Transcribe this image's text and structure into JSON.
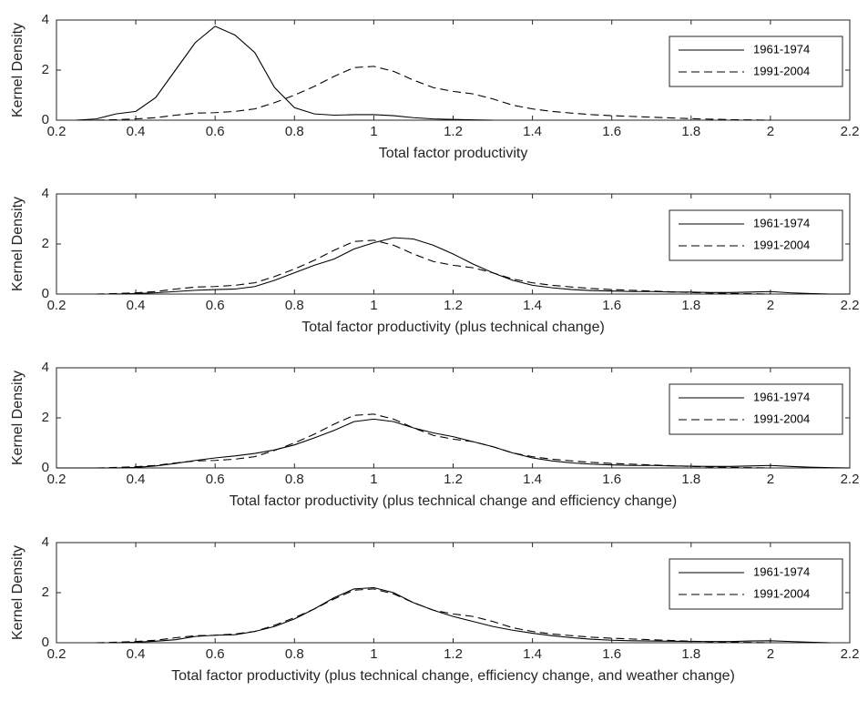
{
  "chart_data": [
    {
      "type": "line",
      "xlabel": "Total factor productivity",
      "ylabel": "Kernel Density",
      "xlim": [
        0.2,
        2.2
      ],
      "ylim": [
        0,
        4
      ],
      "xticks": [
        0.2,
        0.4,
        0.6,
        0.8,
        1,
        1.2,
        1.4,
        1.6,
        1.8,
        2,
        2.2
      ],
      "yticks": [
        0,
        2,
        4
      ],
      "grid": false,
      "legend": "northeast",
      "x": [
        0.2,
        0.25,
        0.3,
        0.35,
        0.4,
        0.45,
        0.5,
        0.55,
        0.6,
        0.65,
        0.7,
        0.75,
        0.8,
        0.85,
        0.9,
        0.95,
        1,
        1.05,
        1.1,
        1.15,
        1.2,
        1.25,
        1.3,
        1.35,
        1.4,
        1.45,
        1.5,
        1.55,
        1.6,
        1.65,
        1.7,
        1.75,
        1.8,
        1.85,
        1.9,
        1.95,
        2,
        2.05,
        2.1,
        2.15,
        2.2
      ],
      "series": [
        {
          "name": "1961-1974",
          "color": "#000000",
          "line_style": "solid",
          "values": [
            null,
            0,
            0.05,
            0.25,
            0.35,
            0.9,
            2.0,
            3.1,
            3.75,
            3.4,
            2.7,
            1.3,
            0.5,
            0.25,
            0.2,
            0.22,
            0.22,
            0.18,
            0.1,
            0.05,
            0.03,
            0.01,
            0,
            null,
            null,
            null,
            null,
            null,
            null,
            null,
            null,
            null,
            null,
            null,
            null,
            null,
            null,
            null,
            null,
            null,
            null
          ]
        },
        {
          "name": "1991-2004",
          "color": "#000000",
          "line_style": "dashed",
          "values": [
            null,
            null,
            0,
            0.02,
            0.05,
            0.1,
            0.2,
            0.28,
            0.3,
            0.35,
            0.45,
            0.7,
            1.0,
            1.35,
            1.75,
            2.1,
            2.15,
            1.95,
            1.6,
            1.3,
            1.15,
            1.05,
            0.85,
            0.6,
            0.45,
            0.35,
            0.28,
            0.22,
            0.18,
            0.15,
            0.12,
            0.09,
            0.06,
            0.04,
            0.02,
            0.01,
            0,
            null,
            null,
            null,
            null
          ]
        }
      ]
    },
    {
      "type": "line",
      "xlabel": "Total factor productivity (plus technical change)",
      "ylabel": "Kernel Density",
      "xlim": [
        0.2,
        2.2
      ],
      "ylim": [
        0,
        4
      ],
      "xticks": [
        0.2,
        0.4,
        0.6,
        0.8,
        1,
        1.2,
        1.4,
        1.6,
        1.8,
        2,
        2.2
      ],
      "yticks": [
        0,
        2,
        4
      ],
      "grid": false,
      "legend": "northeast",
      "x": [
        0.2,
        0.25,
        0.3,
        0.35,
        0.4,
        0.45,
        0.5,
        0.55,
        0.6,
        0.65,
        0.7,
        0.75,
        0.8,
        0.85,
        0.9,
        0.95,
        1,
        1.05,
        1.1,
        1.15,
        1.2,
        1.25,
        1.3,
        1.35,
        1.4,
        1.45,
        1.5,
        1.55,
        1.6,
        1.65,
        1.7,
        1.75,
        1.8,
        1.85,
        1.9,
        1.95,
        2,
        2.05,
        2.1,
        2.15,
        2.2
      ],
      "series": [
        {
          "name": "1961-1974",
          "color": "#000000",
          "line_style": "solid",
          "values": [
            null,
            null,
            null,
            0,
            0.02,
            0.05,
            0.1,
            0.15,
            0.18,
            0.2,
            0.3,
            0.55,
            0.85,
            1.15,
            1.4,
            1.8,
            2.05,
            2.25,
            2.2,
            1.95,
            1.6,
            1.2,
            0.85,
            0.55,
            0.35,
            0.25,
            0.18,
            0.14,
            0.12,
            0.1,
            0.1,
            0.08,
            0.08,
            0.06,
            0.06,
            0.08,
            0.1,
            0.05,
            0.02,
            0,
            0
          ]
        },
        {
          "name": "1991-2004",
          "color": "#000000",
          "line_style": "dashed",
          "values": [
            null,
            null,
            0,
            0.02,
            0.05,
            0.1,
            0.2,
            0.28,
            0.3,
            0.35,
            0.45,
            0.7,
            1.0,
            1.35,
            1.75,
            2.1,
            2.15,
            1.95,
            1.6,
            1.3,
            1.15,
            1.05,
            0.85,
            0.6,
            0.45,
            0.35,
            0.28,
            0.22,
            0.18,
            0.15,
            0.12,
            0.09,
            0.06,
            0.04,
            0.02,
            0.01,
            0,
            null,
            null,
            null,
            null
          ]
        }
      ]
    },
    {
      "type": "line",
      "xlabel": "Total factor productivity (plus technical change and efficiency change)",
      "ylabel": "Kernel Density",
      "xlim": [
        0.2,
        2.2
      ],
      "ylim": [
        0,
        4
      ],
      "xticks": [
        0.2,
        0.4,
        0.6,
        0.8,
        1,
        1.2,
        1.4,
        1.6,
        1.8,
        2,
        2.2
      ],
      "yticks": [
        0,
        2,
        4
      ],
      "grid": false,
      "legend": "northeast",
      "x": [
        0.2,
        0.25,
        0.3,
        0.35,
        0.4,
        0.45,
        0.5,
        0.55,
        0.6,
        0.65,
        0.7,
        0.75,
        0.8,
        0.85,
        0.9,
        0.95,
        1,
        1.05,
        1.1,
        1.15,
        1.2,
        1.25,
        1.3,
        1.35,
        1.4,
        1.45,
        1.5,
        1.55,
        1.6,
        1.65,
        1.7,
        1.75,
        1.8,
        1.85,
        1.9,
        1.95,
        2,
        2.05,
        2.1,
        2.15,
        2.2
      ],
      "series": [
        {
          "name": "1961-1974",
          "color": "#000000",
          "line_style": "solid",
          "values": [
            0,
            0,
            0,
            0,
            0.02,
            0.08,
            0.18,
            0.3,
            0.4,
            0.48,
            0.58,
            0.72,
            0.92,
            1.2,
            1.5,
            1.85,
            1.95,
            1.85,
            1.6,
            1.4,
            1.25,
            1.05,
            0.85,
            0.6,
            0.4,
            0.28,
            0.2,
            0.15,
            0.12,
            0.1,
            0.1,
            0.08,
            0.07,
            0.06,
            0.06,
            0.08,
            0.1,
            0.06,
            0.03,
            0.01,
            0
          ]
        },
        {
          "name": "1991-2004",
          "color": "#000000",
          "line_style": "dashed",
          "values": [
            null,
            null,
            0,
            0.02,
            0.05,
            0.1,
            0.2,
            0.28,
            0.3,
            0.35,
            0.45,
            0.7,
            1.0,
            1.35,
            1.75,
            2.1,
            2.15,
            1.95,
            1.6,
            1.3,
            1.15,
            1.05,
            0.85,
            0.6,
            0.45,
            0.35,
            0.28,
            0.22,
            0.18,
            0.15,
            0.12,
            0.09,
            0.06,
            0.04,
            0.02,
            0.01,
            0,
            null,
            null,
            null,
            null
          ]
        }
      ]
    },
    {
      "type": "line",
      "xlabel": "Total factor productivity (plus technical change, efficiency change, and weather change)",
      "ylabel": "Kernel Density",
      "xlim": [
        0.2,
        2.2
      ],
      "ylim": [
        0,
        4
      ],
      "xticks": [
        0.2,
        0.4,
        0.6,
        0.8,
        1,
        1.2,
        1.4,
        1.6,
        1.8,
        2,
        2.2
      ],
      "yticks": [
        0,
        2,
        4
      ],
      "grid": false,
      "legend": "northeast",
      "x": [
        0.2,
        0.25,
        0.3,
        0.35,
        0.4,
        0.45,
        0.5,
        0.55,
        0.6,
        0.65,
        0.7,
        0.75,
        0.8,
        0.85,
        0.9,
        0.95,
        1,
        1.05,
        1.1,
        1.15,
        1.2,
        1.25,
        1.3,
        1.35,
        1.4,
        1.45,
        1.5,
        1.55,
        1.6,
        1.65,
        1.7,
        1.75,
        1.8,
        1.85,
        1.9,
        1.95,
        2,
        2.05,
        2.1,
        2.15,
        2.2
      ],
      "series": [
        {
          "name": "1961-1974",
          "color": "#000000",
          "line_style": "solid",
          "values": [
            null,
            null,
            null,
            0,
            0.02,
            0.06,
            0.12,
            0.25,
            0.3,
            0.32,
            0.45,
            0.65,
            0.95,
            1.35,
            1.8,
            2.15,
            2.2,
            2.0,
            1.6,
            1.3,
            1.05,
            0.85,
            0.65,
            0.5,
            0.38,
            0.28,
            0.2,
            0.14,
            0.1,
            0.08,
            0.07,
            0.06,
            0.05,
            0.05,
            0.05,
            0.07,
            0.08,
            0.05,
            0.02,
            0,
            null
          ]
        },
        {
          "name": "1991-2004",
          "color": "#000000",
          "line_style": "dashed",
          "values": [
            null,
            null,
            0,
            0.02,
            0.05,
            0.1,
            0.2,
            0.28,
            0.3,
            0.35,
            0.45,
            0.7,
            1.0,
            1.35,
            1.75,
            2.1,
            2.15,
            1.95,
            1.6,
            1.3,
            1.15,
            1.05,
            0.85,
            0.6,
            0.45,
            0.35,
            0.28,
            0.22,
            0.18,
            0.15,
            0.12,
            0.09,
            0.06,
            0.04,
            0.02,
            0.01,
            0,
            null,
            null,
            null,
            null
          ]
        }
      ]
    }
  ]
}
